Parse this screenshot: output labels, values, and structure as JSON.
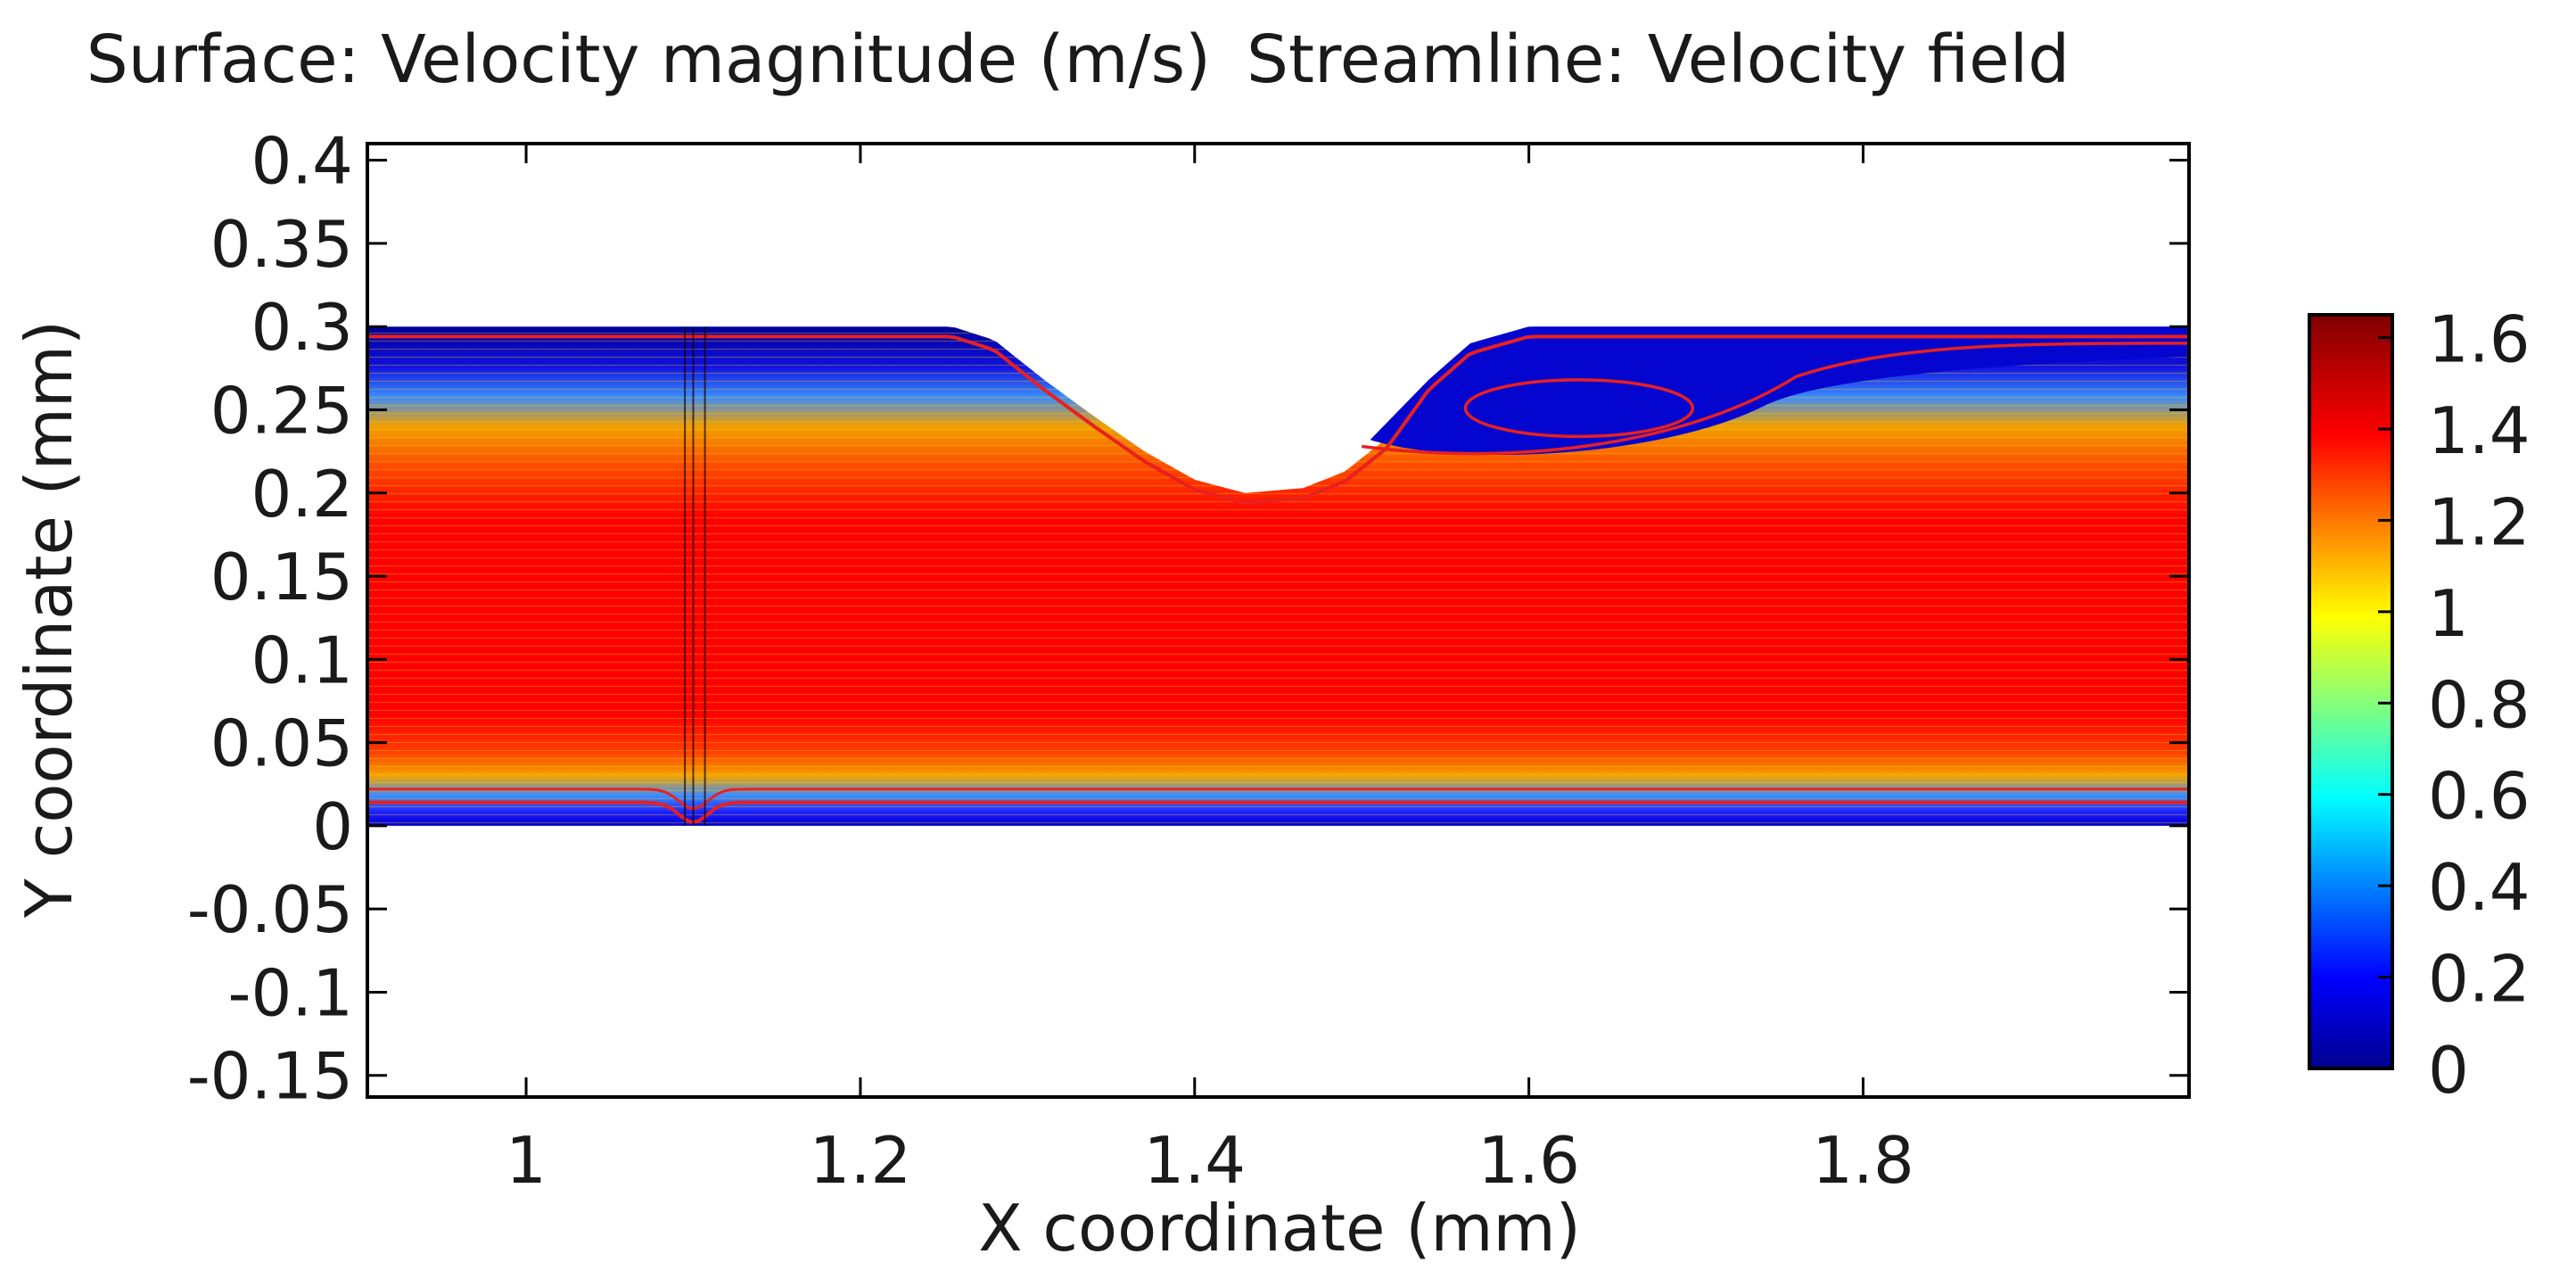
{
  "chart_data": {
    "type": "heatmap",
    "title_surface": "Surface: Velocity magnitude (m/s)",
    "title_streamline": "Streamline: Velocity field",
    "xlabel": "X coordinate (mm)",
    "ylabel": "Y coordinate (mm)",
    "xlim": [
      0.905,
      1.995
    ],
    "ylim": [
      -0.163,
      0.41
    ],
    "x_ticks": [
      1,
      1.2,
      1.4,
      1.6,
      1.8
    ],
    "x_tick_labels": [
      "1",
      "1.2",
      "1.4",
      "1.6",
      "1.8"
    ],
    "y_ticks": [
      0.4,
      0.35,
      0.3,
      0.25,
      0.2,
      0.15,
      0.1,
      0.05,
      0,
      -0.05,
      -0.1,
      -0.15
    ],
    "y_tick_labels": [
      "0.4",
      "0.35",
      "0.3",
      "0.25",
      "0.2",
      "0.15",
      "0.1",
      "0.05",
      "0",
      "-0.05",
      "-0.1",
      "-0.15"
    ],
    "channel": {
      "x_range": [
        0.905,
        1.995
      ],
      "bottom_wall_y": 0.0,
      "top_wall_y": 0.3,
      "constriction_profile": [
        [
          1.255,
          0.3
        ],
        [
          1.28,
          0.292
        ],
        [
          1.31,
          0.268
        ],
        [
          1.34,
          0.246
        ],
        [
          1.37,
          0.225
        ],
        [
          1.4,
          0.208
        ],
        [
          1.43,
          0.2
        ],
        [
          1.465,
          0.203
        ],
        [
          1.49,
          0.213
        ],
        [
          1.515,
          0.233
        ],
        [
          1.54,
          0.268
        ],
        [
          1.565,
          0.29
        ],
        [
          1.6,
          0.3
        ]
      ],
      "wall_bump_x": 1.1
    },
    "colorbar": {
      "label": "Velocity magnitude (m/s)",
      "min": 0,
      "max": 1.65,
      "ticks": [
        1.6,
        1.4,
        1.2,
        1,
        0.8,
        0.6,
        0.4,
        0.2,
        0
      ],
      "tick_labels": [
        "1.6",
        "1.4",
        "1.2",
        "1",
        "0.8",
        "0.6",
        "0.4",
        "0.2",
        "0"
      ],
      "stops": [
        "#00008f",
        "#0000ff",
        "#00ffff",
        "#ffff00",
        "#ff0000",
        "#800000"
      ]
    },
    "colors": {
      "core": "#ff0000",
      "wall_region": "#0a0ad8",
      "streamline": "#e82020",
      "frame": "#000000"
    },
    "recirculation_eddy": {
      "center_x": 1.63,
      "center_y": 0.251,
      "radius_x": 0.068,
      "radius_y": 0.017
    }
  }
}
